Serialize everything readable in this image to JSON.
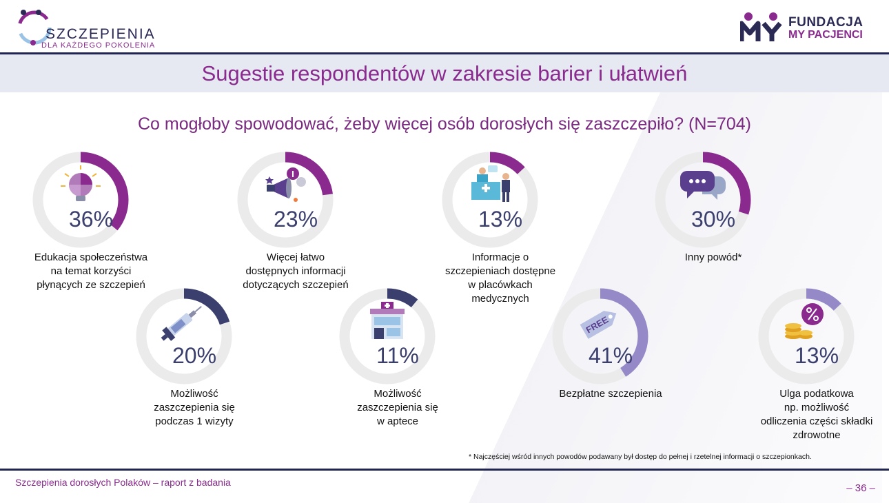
{
  "logo_left": {
    "name": "SZCZEPIENIA",
    "tagline": "DLA KAŻDEGO POKOLENIA"
  },
  "logo_right": {
    "line1": "FUNDACJA",
    "line2": "MY PACJENCI"
  },
  "title": "Sugestie respondentów w zakresie barier i ułatwień",
  "question": "Co mogłoby spowodować, żeby więcej osób dorosłych się zaszczepiło? (N=704)",
  "colors": {
    "purple": "#8a2a8e",
    "navy": "#3a3f6e",
    "lavender": "#9589c7",
    "track": "#ebebeb"
  },
  "chart_data": {
    "type": "donut",
    "title": "Co mogłoby spowodować, żeby więcej osób dorosłych się zaszczepiło? (N=704)",
    "unit": "%",
    "items": [
      {
        "label": "Edukacja społeczeństwa na temat korzyści płynących ze szczepień",
        "lines": [
          "Edukacja społeczeństwa",
          "na temat korzyści",
          "płynących ze szczepień"
        ],
        "value": 36,
        "value_label": "36%",
        "color": "#8a2a8e",
        "icon": "lightbulb-puzzle-icon"
      },
      {
        "label": "Więcej łatwo dostępnych informacji dotyczących szczepień",
        "lines": [
          "Więcej łatwo",
          "dostępnych informacji",
          "dotyczących szczepień"
        ],
        "value": 23,
        "value_label": "23%",
        "color": "#8a2a8e",
        "icon": "megaphone-icon"
      },
      {
        "label": "Informacje o szczepieniach dostępne w placówkach medycznych",
        "lines": [
          "Informacje o",
          "szczepieniach dostępne",
          "w placówkach",
          "medycznych"
        ],
        "value": 13,
        "value_label": "13%",
        "color": "#8a2a8e",
        "icon": "medical-reception-icon"
      },
      {
        "label": "Inny powód*",
        "lines": [
          "Inny powód*"
        ],
        "value": 30,
        "value_label": "30%",
        "color": "#8a2a8e",
        "icon": "speech-bubbles-icon"
      },
      {
        "label": "Możliwość zaszczepienia się podczas 1 wizyty",
        "lines": [
          "Możliwość",
          "zaszczepienia się",
          "podczas 1 wizyty"
        ],
        "value": 20,
        "value_label": "20%",
        "color": "#3a3f6e",
        "icon": "syringe-icon"
      },
      {
        "label": "Możliwość zaszczepienia się w aptece",
        "lines": [
          "Możliwość",
          "zaszczepienia się",
          "w aptece"
        ],
        "value": 11,
        "value_label": "11%",
        "color": "#3a3f6e",
        "icon": "pharmacy-icon"
      },
      {
        "label": "Bezpłatne szczepienia",
        "lines": [
          "Bezpłatne szczepienia"
        ],
        "value": 41,
        "value_label": "41%",
        "color": "#9589c7",
        "icon": "free-tag-icon"
      },
      {
        "label": "Ulga podatkowa np. możliwość odliczenia części składki zdrowotne",
        "lines": [
          "Ulga podatkowa",
          "np. możliwość",
          "odliczenia części składki",
          "zdrowotne"
        ],
        "value": 13,
        "value_label": "13%",
        "color": "#9589c7",
        "icon": "coins-percent-icon"
      }
    ]
  },
  "footnote": "* Najczęściej wśród innych powodów podawany był dostęp do pełnej i rzetelnej informacji o szczepionkach.",
  "footer": {
    "report": "Szczepienia dorosłych Polaków – raport z badania",
    "page": "– 36 –"
  }
}
